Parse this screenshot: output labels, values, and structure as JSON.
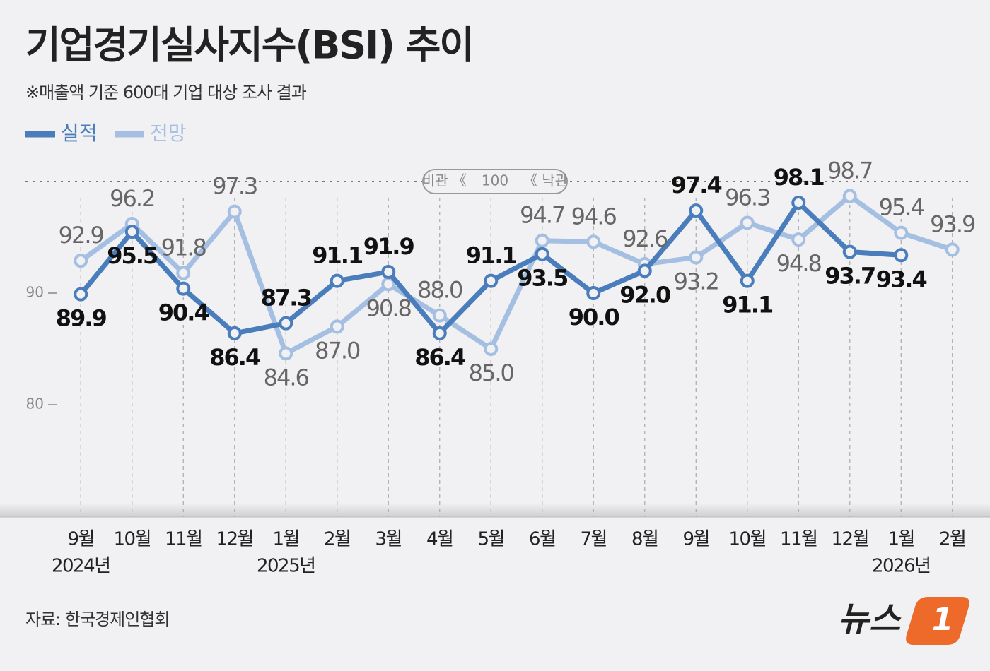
{
  "chart_data": {
    "type": "line",
    "title": "기업경기실사지수(BSI) 추이",
    "subtitle": "※매출액 기준 600대 기업 대상 조사 결과",
    "source": "자료: 한국경제인협회",
    "logo_text": "뉴스",
    "logo_mark": "1",
    "categories": [
      "9월",
      "10월",
      "11월",
      "12월",
      "1월",
      "2월",
      "3월",
      "4월",
      "5월",
      "6월",
      "7월",
      "8월",
      "9월",
      "10월",
      "11월",
      "12월",
      "1월",
      "2월"
    ],
    "year_labels": [
      "2024년",
      null,
      null,
      null,
      "2025년",
      null,
      null,
      null,
      null,
      null,
      null,
      null,
      null,
      null,
      null,
      null,
      "2026년",
      null
    ],
    "series": [
      {
        "name": "실적",
        "color": "#4a7dbb",
        "label_color": "#111111",
        "values": [
          89.9,
          95.5,
          90.4,
          86.4,
          87.3,
          91.1,
          91.9,
          86.4,
          91.1,
          93.5,
          90.0,
          92.0,
          97.4,
          91.1,
          98.1,
          93.7,
          93.4,
          null
        ],
        "value_labels": [
          "89.9",
          "95.5",
          "90.4",
          "86.4",
          "87.3",
          "91.1",
          "91.9",
          "86.4",
          "91.1",
          "93.5",
          "90.0",
          "92.0",
          "97.4",
          "91.1",
          "98.1",
          "93.7",
          "93.4",
          null
        ]
      },
      {
        "name": "전망",
        "color": "#a5bfe2",
        "label_color": "#666666",
        "values": [
          92.9,
          96.2,
          91.8,
          97.3,
          84.6,
          87.0,
          90.8,
          88.0,
          85.0,
          94.7,
          94.6,
          92.6,
          93.2,
          96.3,
          94.8,
          98.7,
          95.4,
          93.9
        ],
        "value_labels": [
          "92.9",
          "96.2",
          "91.8",
          "97.3",
          "84.6",
          "87.0",
          "90.8",
          "88.0",
          "85.0",
          "94.7",
          "94.6",
          "92.6",
          "93.2",
          "96.3",
          "94.8",
          "98.7",
          "95.4",
          "93.9"
        ]
      }
    ],
    "ylim": [
      70,
      102
    ],
    "yticks": [
      80,
      90
    ],
    "reference_line": {
      "value": 100,
      "left_label": "비관 《",
      "right_label": "《 낙관"
    }
  }
}
